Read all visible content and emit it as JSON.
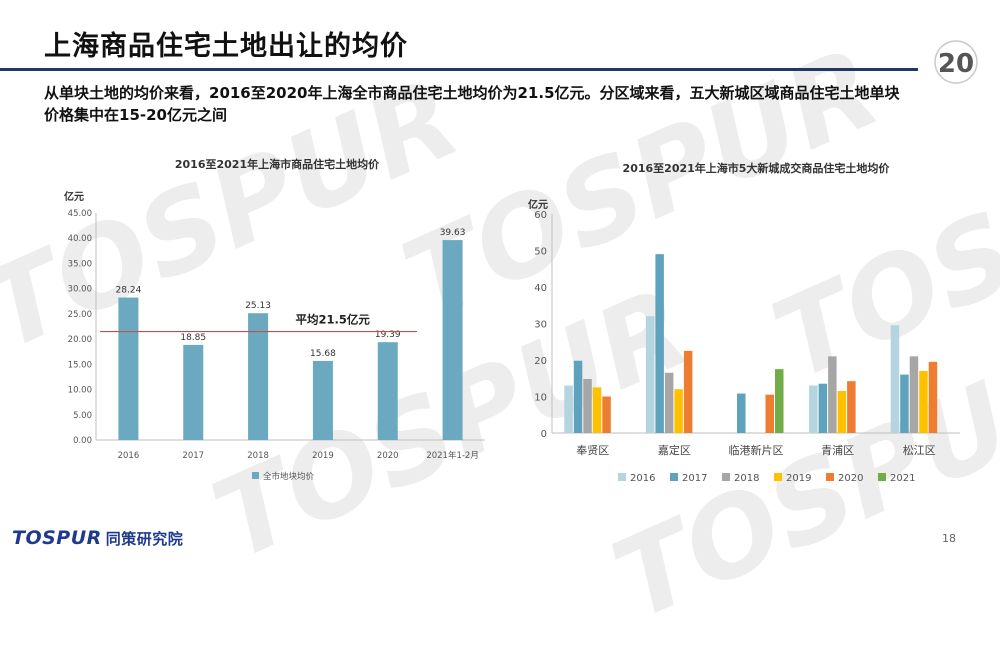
{
  "header": {
    "title": "上海商品住宅土地出让的均价",
    "summary": "从单块土地的均价来看，2016至2020年上海全市商品住宅土地均价为21.5亿元。分区域来看，五大新城区域商品住宅土地单块价格集中在15-20亿元之间"
  },
  "logo": {
    "brand": "TOSPUR",
    "brand_cn": "同策研究院",
    "anniv_number": "20"
  },
  "page_number": "18",
  "colors": {
    "title_rule": "#1f3864",
    "left_bar": "#6aa9bf",
    "avg_line": "#c0504d"
  },
  "chart_data": [
    {
      "type": "bar",
      "title": "2016至2021年上海市商品住宅土地均价",
      "ylabel": "亿元",
      "categories": [
        "2016",
        "2017",
        "2018",
        "2019",
        "2020",
        "2021年1-2月"
      ],
      "series": [
        {
          "name": "全市地块均价",
          "values": [
            28.24,
            18.85,
            25.13,
            15.68,
            19.39,
            39.63
          ],
          "color": "#6aa9bf"
        }
      ],
      "data_labels": [
        "28.24",
        "18.85",
        "25.13",
        "15.68",
        "19.39",
        "39.63"
      ],
      "ylim": [
        0,
        45
      ],
      "yticks": [
        "0.00",
        "5.00",
        "10.00",
        "15.00",
        "20.00",
        "25.00",
        "30.00",
        "35.00",
        "40.00",
        "45.00"
      ],
      "reference_line": {
        "value": 21.5,
        "label": "平均21.5亿元"
      },
      "legend": "bottom",
      "grid": false
    },
    {
      "type": "bar",
      "title": "2016至2021年上海市5大新城成交商品住宅土地均价",
      "ylabel": "亿元",
      "categories": [
        "奉贤区",
        "嘉定区",
        "临港新片区",
        "青浦区",
        "松江区"
      ],
      "series": [
        {
          "name": "2016",
          "color": "#b4d4df",
          "values": [
            13,
            32,
            null,
            13,
            29.5
          ]
        },
        {
          "name": "2017",
          "color": "#5ea2bd",
          "values": [
            19.8,
            49,
            10.8,
            13.5,
            16
          ]
        },
        {
          "name": "2018",
          "color": "#a6a6a6",
          "values": [
            14.8,
            16.5,
            null,
            21,
            21
          ]
        },
        {
          "name": "2019",
          "color": "#ffc000",
          "values": [
            12.5,
            12,
            null,
            11.5,
            17
          ]
        },
        {
          "name": "2020",
          "color": "#ed7d31",
          "values": [
            10,
            22.5,
            10.5,
            14.2,
            19.5
          ]
        },
        {
          "name": "2021",
          "color": "#70ad47",
          "values": [
            null,
            null,
            17.5,
            null,
            null
          ]
        }
      ],
      "ylim": [
        0,
        60
      ],
      "yticks": [
        "0",
        "10",
        "20",
        "30",
        "40",
        "50",
        "60"
      ],
      "legend": "bottom",
      "grid": false
    }
  ]
}
